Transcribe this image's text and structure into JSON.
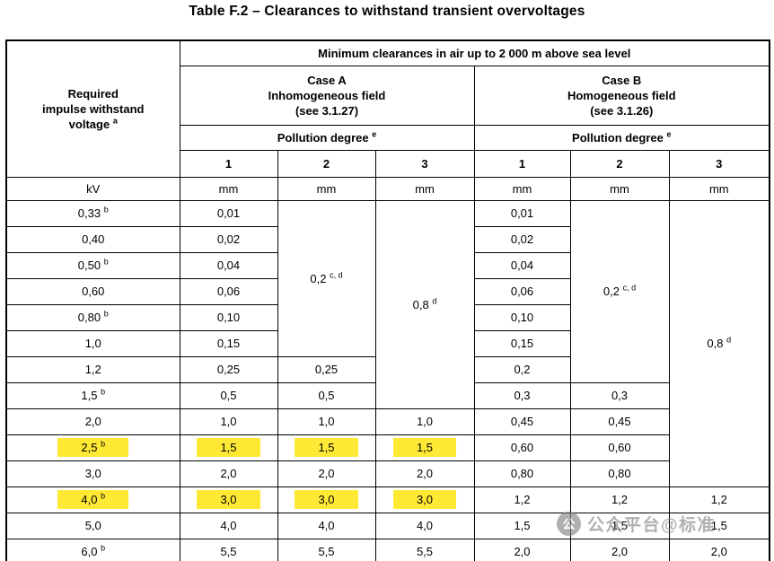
{
  "title": "Table F.2 – Clearances to withstand transient overvoltages",
  "colors": {
    "highlight": "#FFE935",
    "watermark": "#808080",
    "border": "#000000"
  },
  "header": {
    "required_voltage_lines": [
      "Required",
      "impulse withstand",
      "voltage"
    ],
    "required_voltage_sup": "a",
    "kv_unit": "kV",
    "min_clearances": "Minimum clearances in air up to 2 000 m above sea level",
    "case_a_lines": [
      "Case A",
      "Inhomogeneous field",
      "(see 3.1.27)"
    ],
    "case_b_lines": [
      "Case B",
      "Homogeneous field",
      "(see 3.1.26)"
    ],
    "pollution_degree": "Pollution degree",
    "pollution_sup": "e",
    "degrees": [
      "1",
      "2",
      "3"
    ],
    "mm_unit": "mm"
  },
  "rows": [
    {
      "kv": "0,33",
      "kv_sup": "b",
      "cells": [
        {
          "v": "0,01"
        },
        {
          "v": "0,2",
          "sup": "c, d",
          "rowspan": 6
        },
        {
          "v": "0,8",
          "sup": "d",
          "rowspan": 8
        },
        {
          "v": "0,01"
        },
        {
          "v": "0,2",
          "sup": "c, d",
          "rowspan": 7
        },
        {
          "v": "0,8",
          "sup": "d",
          "rowspan": 11
        }
      ]
    },
    {
      "kv": "0,40",
      "cells": [
        {
          "v": "0,02"
        },
        {
          "v": "0,02"
        }
      ]
    },
    {
      "kv": "0,50",
      "kv_sup": "b",
      "cells": [
        {
          "v": "0,04"
        },
        {
          "v": "0,04"
        }
      ]
    },
    {
      "kv": "0,60",
      "cells": [
        {
          "v": "0,06"
        },
        {
          "v": "0,06"
        }
      ]
    },
    {
      "kv": "0,80",
      "kv_sup": "b",
      "cells": [
        {
          "v": "0,10"
        },
        {
          "v": "0,10"
        }
      ]
    },
    {
      "kv": "1,0",
      "cells": [
        {
          "v": "0,15"
        },
        {
          "v": "0,15"
        }
      ]
    },
    {
      "kv": "1,2",
      "cells": [
        {
          "v": "0,25"
        },
        {
          "v": "0,25"
        },
        {
          "v": "0,2"
        }
      ]
    },
    {
      "kv": "1,5",
      "kv_sup": "b",
      "cells": [
        {
          "v": "0,5"
        },
        {
          "v": "0,5"
        },
        {
          "v": "0,3"
        },
        {
          "v": "0,3"
        }
      ]
    },
    {
      "kv": "2,0",
      "cells": [
        {
          "v": "1,0"
        },
        {
          "v": "1,0"
        },
        {
          "v": "1,0"
        },
        {
          "v": "0,45"
        },
        {
          "v": "0,45"
        }
      ]
    },
    {
      "kv": "2,5",
      "kv_sup": "b",
      "kv_hl": true,
      "cells": [
        {
          "v": "1,5",
          "hl": true
        },
        {
          "v": "1,5",
          "hl": true
        },
        {
          "v": "1,5",
          "hl": true
        },
        {
          "v": "0,60"
        },
        {
          "v": "0,60"
        }
      ]
    },
    {
      "kv": "3,0",
      "cells": [
        {
          "v": "2,0"
        },
        {
          "v": "2,0"
        },
        {
          "v": "2,0"
        },
        {
          "v": "0,80"
        },
        {
          "v": "0,80"
        }
      ]
    },
    {
      "kv": "4,0",
      "kv_sup": "b",
      "kv_hl": true,
      "cells": [
        {
          "v": "3,0",
          "hl": true
        },
        {
          "v": "3,0",
          "hl": true
        },
        {
          "v": "3,0",
          "hl": true
        },
        {
          "v": "1,2"
        },
        {
          "v": "1,2"
        },
        {
          "v": "1,2"
        }
      ]
    },
    {
      "kv": "5,0",
      "cells": [
        {
          "v": "4,0"
        },
        {
          "v": "4,0"
        },
        {
          "v": "4,0"
        },
        {
          "v": "1,5"
        },
        {
          "v": "1,5"
        },
        {
          "v": "1,5"
        }
      ]
    },
    {
      "kv": "6,0",
      "kv_sup": "b",
      "cells": [
        {
          "v": "5,5"
        },
        {
          "v": "5,5"
        },
        {
          "v": "5,5"
        },
        {
          "v": "2,0"
        },
        {
          "v": "2,0"
        },
        {
          "v": "2,0"
        }
      ]
    }
  ],
  "watermark": {
    "icon_glyph": "公",
    "text": "公众平台@标准"
  }
}
